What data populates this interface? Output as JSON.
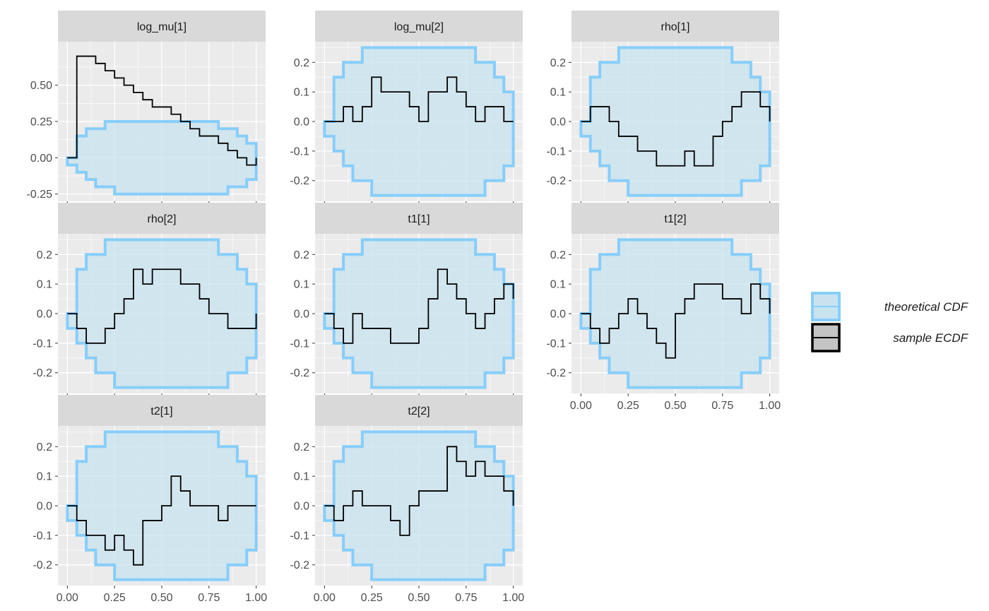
{
  "chart_data": {
    "type": "line",
    "subtype": "faceted step ECDF difference plot with theoretical band",
    "facet_layout": {
      "ncol": 3
    },
    "legend": {
      "position": "right",
      "items": [
        {
          "label": "theoretical CDF",
          "kind": "band"
        },
        {
          "label": "sample ECDF",
          "kind": "line"
        }
      ]
    },
    "colors": {
      "band_fill": "#c8e3ef",
      "band_line": "#87cefa",
      "ecdf_line": "#000000",
      "panel_bg": "#ebebeb",
      "strip_bg": "#d9d9d9",
      "grid": "#ffffff"
    },
    "x_axis": {
      "ticks": [
        0,
        0.25,
        0.5,
        0.75,
        1
      ],
      "tick_labels": [
        "0.00",
        "0.25",
        "0.50",
        "0.75",
        "1.00"
      ],
      "range": [
        0,
        1
      ]
    },
    "band_x": [
      0,
      0.05,
      0.1,
      0.15,
      0.2,
      0.25,
      0.3,
      0.35,
      0.4,
      0.45,
      0.5,
      0.55,
      0.6,
      0.65,
      0.7,
      0.75,
      0.8,
      0.85,
      0.9,
      0.95,
      1.0
    ],
    "band_upper": [
      0,
      0.15,
      0.2,
      0.2,
      0.25,
      0.25,
      0.25,
      0.25,
      0.25,
      0.25,
      0.25,
      0.25,
      0.25,
      0.25,
      0.25,
      0.25,
      0.2,
      0.2,
      0.15,
      0.1,
      0.05
    ],
    "band_lower": [
      -0.05,
      -0.1,
      -0.15,
      -0.2,
      -0.2,
      -0.25,
      -0.25,
      -0.25,
      -0.25,
      -0.25,
      -0.25,
      -0.25,
      -0.25,
      -0.25,
      -0.25,
      -0.25,
      -0.25,
      -0.2,
      -0.2,
      -0.15,
      0
    ],
    "panels": [
      {
        "title": "log_mu[1]",
        "ylim": [
          -0.3,
          0.8
        ],
        "y_ticks": [
          -0.25,
          0,
          0.25,
          0.5
        ],
        "y_tick_labels": [
          "-0.25",
          "0.00",
          "0.25",
          "0.50"
        ],
        "y_minor": [
          -0.125,
          0.125,
          0.375,
          0.625
        ],
        "ecdf_x": [
          0,
          0.05,
          0.1,
          0.15,
          0.2,
          0.25,
          0.3,
          0.35,
          0.4,
          0.45,
          0.5,
          0.55,
          0.6,
          0.65,
          0.7,
          0.75,
          0.8,
          0.85,
          0.9,
          0.95,
          1.0
        ],
        "ecdf_y": [
          0,
          0.7,
          0.7,
          0.65,
          0.6,
          0.55,
          0.5,
          0.45,
          0.4,
          0.35,
          0.35,
          0.3,
          0.25,
          0.2,
          0.15,
          0.15,
          0.1,
          0.05,
          0,
          -0.05,
          0
        ]
      },
      {
        "title": "log_mu[2]",
        "ylim": [
          -0.27,
          0.27
        ],
        "y_ticks": [
          -0.2,
          -0.1,
          0,
          0.1,
          0.2
        ],
        "y_tick_labels": [
          "-0.2",
          "-0.1",
          "0.0",
          "0.1",
          "0.2"
        ],
        "y_minor": [
          -0.15,
          -0.05,
          0.05,
          0.15,
          0.25
        ],
        "ecdf_x": [
          0,
          0.05,
          0.1,
          0.15,
          0.2,
          0.25,
          0.3,
          0.35,
          0.4,
          0.45,
          0.5,
          0.55,
          0.6,
          0.65,
          0.7,
          0.75,
          0.8,
          0.85,
          0.9,
          0.95,
          1.0
        ],
        "ecdf_y": [
          0,
          0,
          0.05,
          0,
          0.05,
          0.15,
          0.1,
          0.1,
          0.1,
          0.05,
          0,
          0.1,
          0.1,
          0.15,
          0.1,
          0.05,
          0,
          0.05,
          0.05,
          0,
          0
        ]
      },
      {
        "title": "rho[1]",
        "ylim": [
          -0.27,
          0.27
        ],
        "y_ticks": [
          -0.2,
          -0.1,
          0,
          0.1,
          0.2
        ],
        "y_tick_labels": [
          "-0.2",
          "-0.1",
          "0.0",
          "0.1",
          "0.2"
        ],
        "y_minor": [
          -0.15,
          -0.05,
          0.05,
          0.15,
          0.25
        ],
        "ecdf_x": [
          0,
          0.05,
          0.1,
          0.15,
          0.2,
          0.25,
          0.3,
          0.35,
          0.4,
          0.45,
          0.5,
          0.55,
          0.6,
          0.65,
          0.7,
          0.75,
          0.8,
          0.85,
          0.9,
          0.95,
          1.0
        ],
        "ecdf_y": [
          0,
          0.05,
          0.05,
          0,
          -0.05,
          -0.05,
          -0.1,
          -0.1,
          -0.15,
          -0.15,
          -0.15,
          -0.1,
          -0.15,
          -0.15,
          -0.05,
          0,
          0.05,
          0.1,
          0.1,
          0.05,
          0
        ]
      },
      {
        "title": "rho[2]",
        "ylim": [
          -0.27,
          0.27
        ],
        "y_ticks": [
          -0.2,
          -0.1,
          0,
          0.1,
          0.2
        ],
        "y_tick_labels": [
          "-0.2",
          "-0.1",
          "0.0",
          "0.1",
          "0.2"
        ],
        "y_minor": [
          -0.15,
          -0.05,
          0.05,
          0.15,
          0.25
        ],
        "ecdf_x": [
          0,
          0.05,
          0.1,
          0.15,
          0.2,
          0.25,
          0.3,
          0.35,
          0.4,
          0.45,
          0.5,
          0.55,
          0.6,
          0.65,
          0.7,
          0.75,
          0.8,
          0.85,
          0.9,
          0.95,
          1.0
        ],
        "ecdf_y": [
          0,
          -0.05,
          -0.1,
          -0.1,
          -0.05,
          0,
          0.05,
          0.15,
          0.1,
          0.15,
          0.15,
          0.15,
          0.1,
          0.1,
          0.05,
          0,
          0,
          -0.05,
          -0.05,
          -0.05,
          0
        ]
      },
      {
        "title": "t1[1]",
        "ylim": [
          -0.27,
          0.27
        ],
        "y_ticks": [
          -0.2,
          -0.1,
          0,
          0.1,
          0.2
        ],
        "y_tick_labels": [
          "-0.2",
          "-0.1",
          "0.0",
          "0.1",
          "0.2"
        ],
        "y_minor": [
          -0.15,
          -0.05,
          0.05,
          0.15,
          0.25
        ],
        "ecdf_x": [
          0,
          0.05,
          0.1,
          0.15,
          0.2,
          0.25,
          0.3,
          0.35,
          0.4,
          0.45,
          0.5,
          0.55,
          0.6,
          0.65,
          0.7,
          0.75,
          0.8,
          0.85,
          0.9,
          0.95,
          1.0
        ],
        "ecdf_y": [
          0,
          -0.05,
          -0.1,
          0,
          -0.05,
          -0.05,
          -0.05,
          -0.1,
          -0.1,
          -0.1,
          -0.05,
          0.05,
          0.15,
          0.1,
          0.05,
          0,
          -0.05,
          0,
          0.05,
          0.1,
          0.05
        ]
      },
      {
        "title": "t1[2]",
        "ylim": [
          -0.27,
          0.27
        ],
        "y_ticks": [
          -0.2,
          -0.1,
          0,
          0.1,
          0.2
        ],
        "y_tick_labels": [
          "-0.2",
          "-0.1",
          "0.0",
          "0.1",
          "0.2"
        ],
        "y_minor": [
          -0.15,
          -0.05,
          0.05,
          0.15,
          0.25
        ],
        "ecdf_x": [
          0,
          0.05,
          0.1,
          0.15,
          0.2,
          0.25,
          0.3,
          0.35,
          0.4,
          0.45,
          0.5,
          0.55,
          0.6,
          0.65,
          0.7,
          0.75,
          0.8,
          0.85,
          0.9,
          0.95,
          1.0
        ],
        "ecdf_y": [
          0,
          -0.05,
          -0.1,
          -0.05,
          0,
          0.05,
          0,
          -0.05,
          -0.1,
          -0.15,
          0,
          0.05,
          0.1,
          0.1,
          0.1,
          0.05,
          0.05,
          0,
          0.1,
          0.05,
          0
        ]
      },
      {
        "title": "t2[1]",
        "ylim": [
          -0.27,
          0.27
        ],
        "y_ticks": [
          -0.2,
          -0.1,
          0,
          0.1,
          0.2
        ],
        "y_tick_labels": [
          "-0.2",
          "-0.1",
          "0.0",
          "0.1",
          "0.2"
        ],
        "y_minor": [
          -0.15,
          -0.05,
          0.05,
          0.15,
          0.25
        ],
        "ecdf_x": [
          0,
          0.05,
          0.1,
          0.15,
          0.2,
          0.25,
          0.3,
          0.35,
          0.4,
          0.45,
          0.5,
          0.55,
          0.6,
          0.65,
          0.7,
          0.75,
          0.8,
          0.85,
          0.9,
          0.95,
          1.0
        ],
        "ecdf_y": [
          0,
          -0.05,
          -0.1,
          -0.1,
          -0.15,
          -0.1,
          -0.15,
          -0.2,
          -0.05,
          -0.05,
          0,
          0.1,
          0.05,
          0,
          0,
          0,
          -0.05,
          0,
          0,
          0,
          0
        ]
      },
      {
        "title": "t2[2]",
        "ylim": [
          -0.27,
          0.27
        ],
        "y_ticks": [
          -0.2,
          -0.1,
          0,
          0.1,
          0.2
        ],
        "y_tick_labels": [
          "-0.2",
          "-0.1",
          "0.0",
          "0.1",
          "0.2"
        ],
        "y_minor": [
          -0.15,
          -0.05,
          0.05,
          0.15,
          0.25
        ],
        "ecdf_x": [
          0,
          0.05,
          0.1,
          0.15,
          0.2,
          0.25,
          0.3,
          0.35,
          0.4,
          0.45,
          0.5,
          0.55,
          0.6,
          0.65,
          0.7,
          0.75,
          0.8,
          0.85,
          0.9,
          0.95,
          1.0
        ],
        "ecdf_y": [
          0,
          -0.05,
          0,
          0.05,
          0,
          0,
          0,
          -0.05,
          -0.1,
          0,
          0.05,
          0.05,
          0.05,
          0.2,
          0.15,
          0.1,
          0.15,
          0.1,
          0.1,
          0.05,
          0
        ]
      }
    ]
  }
}
